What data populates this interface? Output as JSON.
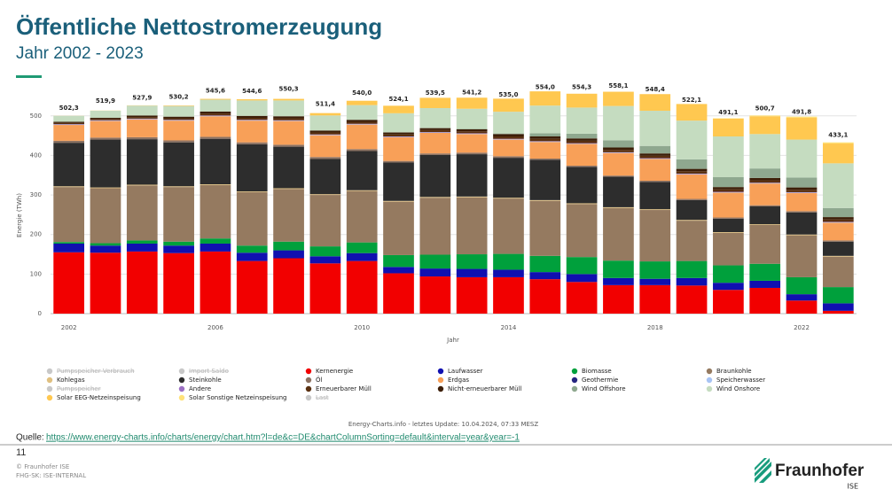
{
  "slide": {
    "title": "Öffentliche Nettostromerzeugung",
    "subtitle": "Jahr 2002 - 2023",
    "credit": "Energy-Charts.info - letztes Update: 10.04.2024, 07:33 MESZ",
    "source_prefix": "Quelle:",
    "source_url": "https://www.energy-charts.info/charts/energy/chart.htm?l=de&c=DE&chartColumnSorting=default&interval=year&year=-1",
    "page_number": "11",
    "copyright": "© Fraunhofer ISE",
    "classification": "FHG-SK: ISE-INTERNAL",
    "logo_name": "Fraunhofer",
    "logo_sub": "ISE"
  },
  "chart_data": {
    "type": "stacked_bar",
    "y_label": "Energie (TWh)",
    "x_label": "Jahr",
    "categories": [
      "2002",
      null,
      null,
      null,
      "2006",
      null,
      null,
      null,
      "2010",
      null,
      null,
      null,
      "2014",
      null,
      null,
      null,
      "2018",
      null,
      null,
      null,
      "2022",
      null
    ],
    "ylim": [
      0,
      560
    ],
    "yticks": [
      0,
      100,
      200,
      300,
      400,
      500
    ],
    "grid": true,
    "totals": {
      "values": [
        502.3,
        519.9,
        527.9,
        530.2,
        545.6,
        544.6,
        550.3,
        511.4,
        540.0,
        524.1,
        539.5,
        541.2,
        535.0,
        554.0,
        554.3,
        558.1,
        548.4,
        522.1,
        491.1,
        500.7,
        491.8,
        433.1
      ],
      "value_labels": [
        "502,3",
        "519,9",
        "527,9",
        "530,2",
        "545,6",
        "544,6",
        "550,3",
        "511,4",
        "540,0",
        "524,1",
        "539,5",
        "541,2",
        "535,0",
        "554,0",
        "554,3",
        "558,1",
        "548,4",
        "522,1",
        "491,1",
        "500,7",
        "491,8",
        "433,1"
      ]
    },
    "series": [
      {
        "name": "Pumpspeicher Verbrauch",
        "color": "#c8c8c8",
        "active": false
      },
      {
        "name": "Import Saldo",
        "color": "#c8c8c8",
        "active": false
      },
      {
        "name": "Kernenergie",
        "color": "#f20000",
        "values": [
          155,
          154,
          157,
          153,
          157,
          133,
          140,
          127,
          133,
          102,
          94,
          92,
          92,
          87,
          80,
          72,
          72,
          71,
          60,
          65,
          33,
          7
        ]
      },
      {
        "name": "Laufwasser",
        "color": "#1010b0",
        "values": [
          22,
          18,
          20,
          19,
          20,
          21,
          20,
          18,
          20,
          16,
          20,
          21,
          19,
          18,
          20,
          18,
          16,
          19,
          18,
          18,
          16,
          19
        ]
      },
      {
        "name": "Biomasse",
        "color": "#00a03c",
        "values": [
          4,
          6,
          8,
          10,
          13,
          18,
          22,
          25,
          27,
          30,
          35,
          37,
          40,
          41,
          43,
          44,
          44,
          43,
          44,
          43,
          43,
          41
        ]
      },
      {
        "name": "Braunkohle",
        "color": "#957a60",
        "values": [
          139,
          139,
          139,
          138,
          135,
          135,
          133,
          130,
          130,
          135,
          144,
          144,
          140,
          139,
          134,
          133,
          130,
          102,
          82,
          98,
          106,
          77
        ]
      },
      {
        "name": "Kohlegas",
        "color": "#e0c080",
        "values": [
          2,
          2,
          2,
          2,
          2,
          2,
          2,
          2,
          2,
          2,
          2,
          2,
          2,
          2,
          2,
          2,
          2,
          2,
          2,
          2,
          2,
          2
        ]
      },
      {
        "name": "Steinkohle",
        "color": "#2d2d2d",
        "values": [
          110,
          121,
          115,
          111,
          115,
          119,
          105,
          89,
          99,
          97,
          106,
          107,
          101,
          102,
          92,
          77,
          69,
          50,
          34,
          45,
          56,
          36
        ]
      },
      {
        "name": "Öl",
        "color": "#8c7262",
        "values": [
          5,
          5,
          5,
          5,
          5,
          5,
          5,
          5,
          5,
          4,
          4,
          4,
          4,
          3,
          3,
          3,
          3,
          3,
          3,
          3,
          3,
          3
        ]
      },
      {
        "name": "Erdgas",
        "color": "#f8a058",
        "values": [
          40,
          42,
          45,
          50,
          52,
          55,
          60,
          55,
          62,
          60,
          52,
          47,
          42,
          42,
          55,
          57,
          55,
          62,
          63,
          55,
          46,
          45
        ]
      },
      {
        "name": "Geothermie",
        "color": "#262680",
        "values": [
          0,
          0,
          0,
          0,
          0,
          0,
          0,
          0,
          0,
          0,
          0,
          0,
          0,
          0,
          0,
          0,
          0,
          0,
          0,
          0,
          0,
          0
        ]
      },
      {
        "name": "Speicherwasser",
        "color": "#a8c4f4",
        "values": [
          1,
          1,
          1,
          1,
          1,
          1,
          1,
          1,
          1,
          1,
          1,
          1,
          1,
          1,
          1,
          1,
          1,
          1,
          1,
          1,
          1,
          1
        ]
      },
      {
        "name": "Pumpspeicher",
        "color": "#c8c8c8",
        "active": false
      },
      {
        "name": "Andere",
        "color": "#9c70c4",
        "values": [
          1,
          1,
          1,
          1,
          1,
          1,
          1,
          1,
          1,
          1,
          1,
          1,
          1,
          1,
          1,
          1,
          1,
          1,
          1,
          1,
          1,
          1
        ]
      },
      {
        "name": "Erneuerbarer Müll",
        "color": "#5a3010",
        "values": [
          3,
          3,
          4,
          4,
          5,
          5,
          5,
          5,
          5,
          5,
          5,
          5,
          6,
          6,
          6,
          6,
          6,
          6,
          6,
          6,
          6,
          6
        ]
      },
      {
        "name": "Nicht-erneuerbarer Müll",
        "color": "#3c1e08",
        "values": [
          3,
          3,
          4,
          4,
          5,
          5,
          5,
          5,
          5,
          5,
          5,
          5,
          6,
          6,
          6,
          6,
          6,
          6,
          6,
          6,
          6,
          6
        ]
      },
      {
        "name": "Wind Offshore",
        "color": "#8fa88f",
        "values": [
          0,
          0,
          0,
          0,
          0,
          0,
          0,
          0,
          0.2,
          0.6,
          0.7,
          1,
          1.5,
          8,
          12,
          18,
          19,
          24,
          25,
          24,
          25,
          23
        ]
      },
      {
        "name": "Wind Onshore",
        "color": "#c5dcc0",
        "values": [
          15,
          18,
          25,
          27,
          30,
          39,
          40,
          38,
          37,
          48,
          50,
          51,
          55,
          70,
          66,
          87,
          89,
          98,
          103,
          87,
          96,
          113
        ]
      },
      {
        "name": "Solar EEG-Netzeinspeisung",
        "color": "#ffc850",
        "values": [
          0.2,
          0.3,
          0.6,
          1.3,
          2,
          3,
          4,
          6,
          11,
          19,
          26,
          28,
          33,
          36,
          35,
          36,
          42,
          42,
          45,
          45,
          55,
          50
        ]
      },
      {
        "name": "Solar Sonstige Netzeinspeisung",
        "color": "#ffe27a",
        "values": [
          0,
          0,
          0,
          0,
          0,
          0,
          0,
          0,
          0,
          0,
          0,
          0,
          0,
          0,
          0,
          0,
          0,
          0,
          1,
          2,
          3,
          3
        ]
      },
      {
        "name": "Last",
        "color": "#c8c8c8",
        "active": false
      }
    ]
  }
}
